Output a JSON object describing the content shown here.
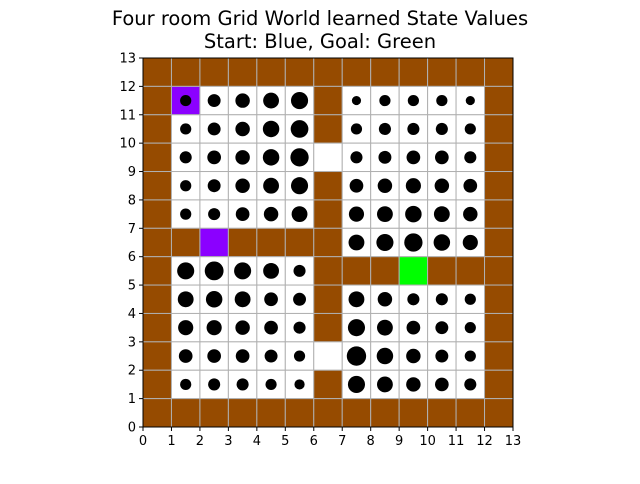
{
  "chart_data": {
    "type": "heatmap",
    "title": [
      "Four room Grid World learned State Values",
      "Start: Blue, Goal: Green"
    ],
    "xlabel": "",
    "ylabel": "",
    "xlim": [
      0,
      13
    ],
    "ylim": [
      0,
      13
    ],
    "xticks": [
      0,
      1,
      2,
      3,
      4,
      5,
      6,
      7,
      8,
      9,
      10,
      11,
      12,
      13
    ],
    "yticks": [
      0,
      1,
      2,
      3,
      4,
      5,
      6,
      7,
      8,
      9,
      10,
      11,
      12,
      13
    ],
    "grid": true,
    "colors": {
      "wall": "#964B00",
      "start": "#8B00FF",
      "goal": "#00FF00",
      "floor": "#FFFFFF",
      "grid": "#b0b0b0",
      "marker": "#000000"
    },
    "legend": "none",
    "cell_types": [
      "WWWWWWWWWWWWW",
      "WSFFFFWFFFFFW",
      "WFFFFFWFFFFFW",
      "WFFFFFFFFFFFW",
      "WFFFFFWFFFFFW",
      "WFFFFFWFFFFFW",
      "WWSWWWWFFFFFW",
      "WFFFFFWWWGWWW",
      "WFFFFFWFFFFFW",
      "WFFFFFWFFFFFW",
      "WFFFFFFFFFFFW",
      "WFFFFFWFFFFFW",
      "WWWWWWWWWWWWW"
    ],
    "cell_type_order": "rows listed top (y 12-13) to bottom (y 0-1); W = wall, F = floor, S = start (blue/purple), G = goal (green)",
    "state_values": [
      [
        null,
        null,
        null,
        null,
        null,
        null,
        null,
        null,
        null,
        null,
        null,
        null,
        null
      ],
      [
        null,
        0.3,
        0.4,
        0.5,
        0.6,
        0.7,
        null,
        0.2,
        0.3,
        0.3,
        0.3,
        0.2,
        null
      ],
      [
        null,
        0.3,
        0.4,
        0.5,
        0.65,
        0.75,
        null,
        0.3,
        0.35,
        0.35,
        0.35,
        0.3,
        null
      ],
      [
        null,
        0.35,
        0.45,
        0.5,
        0.65,
        0.8,
        null,
        0.35,
        0.4,
        0.45,
        0.45,
        0.35,
        null
      ],
      [
        null,
        0.3,
        0.4,
        0.5,
        0.6,
        0.7,
        null,
        0.45,
        0.5,
        0.55,
        0.5,
        0.45,
        null
      ],
      [
        null,
        0.3,
        0.35,
        0.45,
        0.5,
        0.6,
        null,
        0.55,
        0.6,
        0.65,
        0.6,
        0.5,
        null
      ],
      [
        null,
        null,
        null,
        null,
        null,
        null,
        null,
        0.6,
        0.7,
        0.8,
        0.65,
        0.55,
        null
      ],
      [
        null,
        0.7,
        0.85,
        0.7,
        0.6,
        0.35,
        null,
        null,
        null,
        null,
        null,
        null,
        null
      ],
      [
        null,
        0.6,
        0.65,
        0.6,
        0.45,
        0.4,
        null,
        0.6,
        0.5,
        0.35,
        0.35,
        0.3,
        null
      ],
      [
        null,
        0.55,
        0.55,
        0.5,
        0.45,
        0.35,
        null,
        0.7,
        0.6,
        0.45,
        0.4,
        0.3,
        null
      ],
      [
        null,
        0.45,
        0.45,
        0.45,
        0.4,
        0.3,
        null,
        0.9,
        0.65,
        0.5,
        0.4,
        0.3,
        null
      ],
      [
        null,
        0.3,
        0.35,
        0.35,
        0.3,
        0.25,
        null,
        0.7,
        0.6,
        0.5,
        0.45,
        0.35,
        null
      ],
      [
        null,
        null,
        null,
        null,
        null,
        null,
        null,
        null,
        null,
        null,
        null,
        null,
        null
      ]
    ],
    "state_values_note": "relative marker size per cell, rows listed top to bottom, estimated from circle areas"
  }
}
